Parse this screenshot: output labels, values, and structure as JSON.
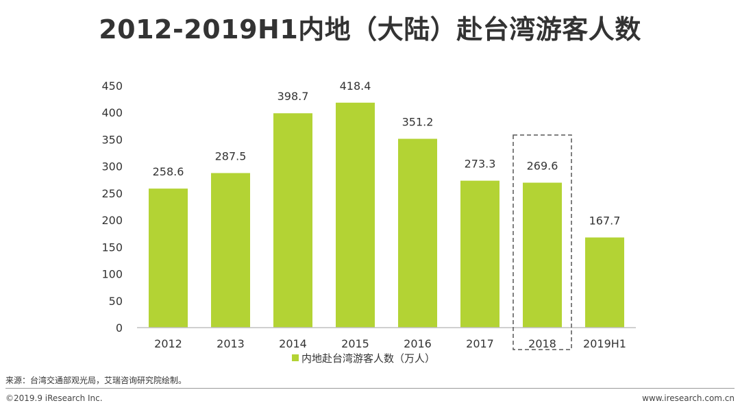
{
  "title": "2012-2019H1内地（大陆）赴台湾游客人数",
  "colors": {
    "bar": "#b3d334",
    "axis": "#bfbfbf",
    "highlight_box": "#555555"
  },
  "chart_data": {
    "type": "bar",
    "categories": [
      "2012",
      "2013",
      "2014",
      "2015",
      "2016",
      "2017",
      "2018",
      "2019H1"
    ],
    "series": [
      {
        "name": "内地赴台湾游客人数（万人）",
        "values": [
          258.6,
          287.5,
          398.7,
          418.4,
          351.2,
          273.3,
          269.6,
          167.7
        ]
      }
    ],
    "data_labels": [
      "258.6",
      "287.5",
      "398.7",
      "418.4",
      "351.2",
      "273.3",
      "269.6",
      "167.7"
    ],
    "y_ticks": [
      "0",
      "50",
      "100",
      "150",
      "200",
      "250",
      "300",
      "350",
      "400",
      "450"
    ],
    "ylim": [
      0,
      450
    ],
    "grid": false,
    "legend_position": "bottom",
    "highlighted_category": "2018"
  },
  "legend_label": "内地赴台湾游客人数（万人）",
  "footer": {
    "source": "来源：台湾交通部观光局，艾瑞咨询研究院绘制。",
    "copyright": "©2019.9 iResearch Inc.",
    "website": "www.iresearch.com.cn"
  }
}
